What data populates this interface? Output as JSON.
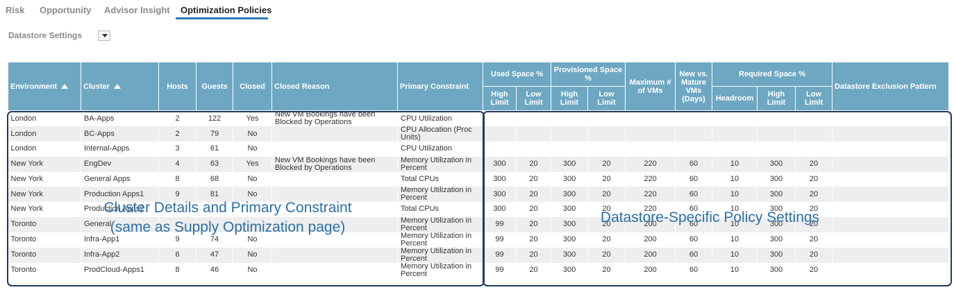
{
  "tabs": [
    {
      "label": "Risk"
    },
    {
      "label": "Opportunity"
    },
    {
      "label": "Advisor Insight"
    },
    {
      "label": "Optimization Policies"
    }
  ],
  "selector": {
    "label": "Datastore Settings"
  },
  "table": {
    "headers": {
      "environment": "Environment",
      "cluster": "Cluster",
      "hosts": "Hosts",
      "guests": "Guests",
      "closed": "Closed",
      "closed_reason": "Closed Reason",
      "primary_constraint": "Primary Constraint",
      "used_space": "Used Space %",
      "provisioned_space": "Provisioned Space %",
      "max_vms": "Maximum # of VMs",
      "new_vs_mature": "New vs. Mature VMs (Days)",
      "required_space": "Required Space %",
      "exclusion_pattern": "Datastore Exclusion Pattern",
      "high_limit": "High Limit",
      "low_limit": "Low Limit",
      "headroom": "Headroom"
    },
    "rows": [
      {
        "env": "London",
        "cluster": "BA-Apps",
        "hosts": "2",
        "guests": "122",
        "closed": "Yes",
        "reason": "New VM Bookings have been Blocked by Operations",
        "constraint": "CPU Utilization",
        "used_high": "",
        "used_low": "",
        "prov_high": "",
        "prov_low": "",
        "max_vms": "",
        "new_mature": "",
        "headroom": "",
        "req_high": "",
        "req_low": "",
        "exclusion": ""
      },
      {
        "env": "London",
        "cluster": "BC-Apps",
        "hosts": "2",
        "guests": "79",
        "closed": "No",
        "reason": "",
        "constraint": "CPU Allocation (Proc Units)",
        "used_high": "",
        "used_low": "",
        "prov_high": "",
        "prov_low": "",
        "max_vms": "",
        "new_mature": "",
        "headroom": "",
        "req_high": "",
        "req_low": "",
        "exclusion": ""
      },
      {
        "env": "London",
        "cluster": "Internal-Apps",
        "hosts": "3",
        "guests": "61",
        "closed": "No",
        "reason": "",
        "constraint": "CPU Utilization",
        "used_high": "",
        "used_low": "",
        "prov_high": "",
        "prov_low": "",
        "max_vms": "",
        "new_mature": "",
        "headroom": "",
        "req_high": "",
        "req_low": "",
        "exclusion": ""
      },
      {
        "env": "New York",
        "cluster": "EngDev",
        "hosts": "4",
        "guests": "63",
        "closed": "Yes",
        "reason": "New VM Bookings have been Blocked by Operations",
        "constraint": "Memory Utilization in Percent",
        "used_high": "300",
        "used_low": "20",
        "prov_high": "300",
        "prov_low": "20",
        "max_vms": "220",
        "new_mature": "60",
        "headroom": "10",
        "req_high": "300",
        "req_low": "20",
        "exclusion": ""
      },
      {
        "env": "New York",
        "cluster": "General Apps",
        "hosts": "8",
        "guests": "68",
        "closed": "No",
        "reason": "",
        "constraint": "Total CPUs",
        "used_high": "300",
        "used_low": "20",
        "prov_high": "300",
        "prov_low": "20",
        "max_vms": "220",
        "new_mature": "60",
        "headroom": "10",
        "req_high": "300",
        "req_low": "20",
        "exclusion": ""
      },
      {
        "env": "New York",
        "cluster": "Production Apps1",
        "hosts": "9",
        "guests": "81",
        "closed": "No",
        "reason": "",
        "constraint": "Memory Utilization in Percent",
        "used_high": "300",
        "used_low": "20",
        "prov_high": "300",
        "prov_low": "20",
        "max_vms": "220",
        "new_mature": "60",
        "headroom": "10",
        "req_high": "300",
        "req_low": "20",
        "exclusion": ""
      },
      {
        "env": "New York",
        "cluster": "Production Apps2",
        "hosts": "",
        "guests": "",
        "closed": "",
        "reason": "",
        "constraint": "Total CPUs",
        "used_high": "300",
        "used_low": "20",
        "prov_high": "300",
        "prov_low": "20",
        "max_vms": "220",
        "new_mature": "60",
        "headroom": "10",
        "req_high": "300",
        "req_low": "20",
        "exclusion": ""
      },
      {
        "env": "Toronto",
        "cluster": "General",
        "hosts": "",
        "guests": "",
        "closed": "",
        "reason": "",
        "constraint": "Memory Utilization in Percent",
        "used_high": "99",
        "used_low": "20",
        "prov_high": "300",
        "prov_low": "20",
        "max_vms": "200",
        "new_mature": "60",
        "headroom": "10",
        "req_high": "300",
        "req_low": "20",
        "exclusion": ""
      },
      {
        "env": "Toronto",
        "cluster": "Infra-App1",
        "hosts": "9",
        "guests": "74",
        "closed": "No",
        "reason": "",
        "constraint": "Memory Utilization in Percent",
        "used_high": "99",
        "used_low": "20",
        "prov_high": "300",
        "prov_low": "20",
        "max_vms": "200",
        "new_mature": "60",
        "headroom": "10",
        "req_high": "300",
        "req_low": "20",
        "exclusion": ""
      },
      {
        "env": "Toronto",
        "cluster": "Infra-App2",
        "hosts": "6",
        "guests": "47",
        "closed": "No",
        "reason": "",
        "constraint": "Memory Utilization in Percent",
        "used_high": "99",
        "used_low": "20",
        "prov_high": "300",
        "prov_low": "20",
        "max_vms": "200",
        "new_mature": "60",
        "headroom": "10",
        "req_high": "300",
        "req_low": "20",
        "exclusion": ""
      },
      {
        "env": "Toronto",
        "cluster": "ProdCloud-Apps1",
        "hosts": "8",
        "guests": "46",
        "closed": "No",
        "reason": "",
        "constraint": "Memory Utilization in Percent",
        "used_high": "99",
        "used_low": "20",
        "prov_high": "300",
        "prov_low": "20",
        "max_vms": "200",
        "new_mature": "60",
        "headroom": "10",
        "req_high": "300",
        "req_low": "20",
        "exclusion": ""
      }
    ]
  },
  "annotations": {
    "left_line1": "Cluster Details and Primary Constraint",
    "left_line2": "(same as Supply Optimization page)",
    "right": "Datastore-Specific Policy Settings"
  },
  "colors": {
    "header_bg": "#6ea7c2",
    "tab_accent": "#2e7ab8",
    "annotation_text": "#2a6fa8",
    "box_border": "#1d3a5c"
  }
}
